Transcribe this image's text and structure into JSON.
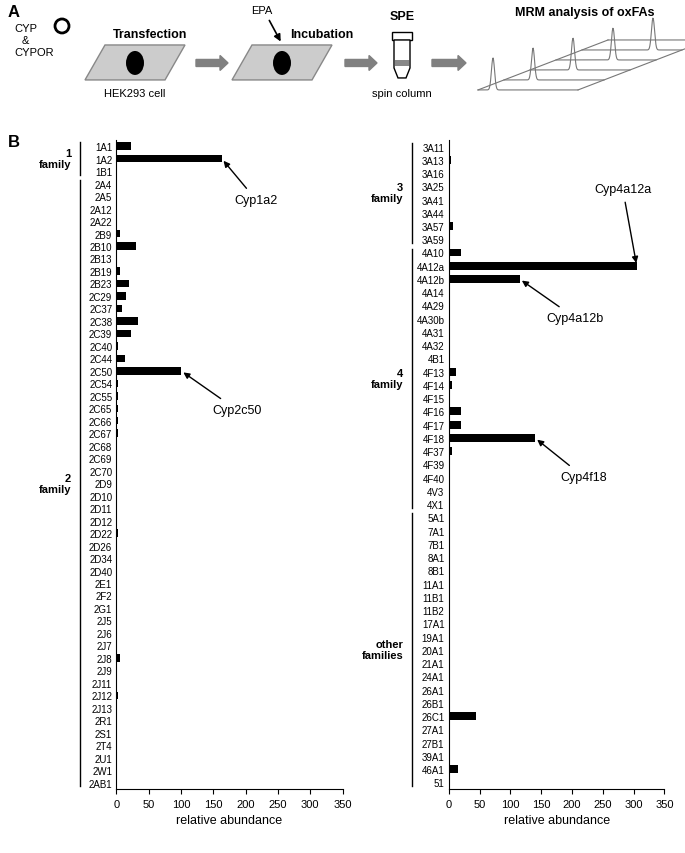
{
  "panel_a": {
    "label": "A",
    "plasmid": [
      "CYP",
      "&",
      "CYPOR"
    ],
    "steps": [
      {
        "title": "Transfection",
        "caption": "HEK293 cell"
      },
      {
        "title": "Incubation",
        "input": "EPA"
      },
      {
        "title": "SPE",
        "caption": "spin column"
      },
      {
        "title": "MRM analysis of oxFAs"
      }
    ]
  },
  "panel_b_label": "B",
  "chart_data": [
    {
      "type": "bar",
      "orientation": "horizontal",
      "color": "#000000",
      "xlabel": "relative abundance",
      "xlim": [
        0,
        350
      ],
      "xticks": [
        0,
        50,
        100,
        150,
        200,
        250,
        300,
        350
      ],
      "categories": [
        "1A1",
        "1A2",
        "1B1",
        "2A4",
        "2A5",
        "2A12",
        "2A22",
        "2B9",
        "2B10",
        "2B13",
        "2B19",
        "2B23",
        "2C29",
        "2C37",
        "2C38",
        "2C39",
        "2C40",
        "2C44",
        "2C50",
        "2C54",
        "2C55",
        "2C65",
        "2C66",
        "2C67",
        "2C68",
        "2C69",
        "2C70",
        "2D9",
        "2D10",
        "2D11",
        "2D12",
        "2D22",
        "2D26",
        "2D34",
        "2D40",
        "2E1",
        "2F2",
        "2G1",
        "2J5",
        "2J6",
        "2J7",
        "2J8",
        "2J9",
        "2J11",
        "2J12",
        "2J13",
        "2R1",
        "2S1",
        "2T4",
        "2U1",
        "2W1",
        "2AB1"
      ],
      "values": [
        22,
        163,
        0,
        0,
        0,
        0,
        0,
        5,
        30,
        0,
        6,
        20,
        15,
        8,
        33,
        22,
        2,
        13,
        100,
        2,
        2,
        2,
        2,
        2,
        0,
        0,
        0,
        0,
        0,
        0,
        0,
        2,
        0,
        0,
        0,
        0,
        0,
        0,
        0,
        0,
        0,
        5,
        0,
        0,
        2,
        0,
        0,
        0,
        0,
        1,
        0,
        0
      ],
      "groups": [
        {
          "label": "1 family",
          "from": "1A1",
          "to": "1B1"
        },
        {
          "label": "2 family",
          "from": "2A4",
          "to": "2AB1"
        }
      ],
      "annotations": [
        {
          "text": "Cyp1a2",
          "category": "1A2"
        },
        {
          "text": "Cyp2c50",
          "category": "2C50"
        }
      ]
    },
    {
      "type": "bar",
      "orientation": "horizontal",
      "color": "#000000",
      "xlabel": "relative abundance",
      "xlim": [
        0,
        350
      ],
      "xticks": [
        0,
        50,
        100,
        150,
        200,
        250,
        300,
        350
      ],
      "categories": [
        "3A11",
        "3A13",
        "3A16",
        "3A25",
        "3A41",
        "3A44",
        "3A57",
        "3A59",
        "4A10",
        "4A12a",
        "4A12b",
        "4A14",
        "4A29",
        "4A30b",
        "4A31",
        "4A32",
        "4B1",
        "4F13",
        "4F14",
        "4F15",
        "4F16",
        "4F17",
        "4F18",
        "4F37",
        "4F39",
        "4F40",
        "4V3",
        "4X1",
        "5A1",
        "7A1",
        "7B1",
        "8A1",
        "8B1",
        "11A1",
        "11B1",
        "11B2",
        "17A1",
        "19A1",
        "20A1",
        "21A1",
        "24A1",
        "26A1",
        "26B1",
        "26C1",
        "27A1",
        "27B1",
        "39A1",
        "46A1",
        "51"
      ],
      "values": [
        0,
        3,
        0,
        0,
        0,
        0,
        7,
        2,
        20,
        305,
        115,
        0,
        0,
        0,
        0,
        0,
        0,
        12,
        5,
        2,
        20,
        20,
        140,
        5,
        0,
        0,
        0,
        0,
        0,
        0,
        0,
        0,
        0,
        0,
        0,
        0,
        0,
        0,
        0,
        0,
        0,
        0,
        0,
        45,
        0,
        0,
        0,
        15,
        0
      ],
      "groups": [
        {
          "label": "3 family",
          "from": "3A11",
          "to": "3A59"
        },
        {
          "label": "4 family",
          "from": "4A10",
          "to": "4X1"
        },
        {
          "label": "other families",
          "from": "5A1",
          "to": "51"
        }
      ],
      "annotations": [
        {
          "text": "Cyp4a12a",
          "category": "4A12a"
        },
        {
          "text": "Cyp4a12b",
          "category": "4A12b"
        },
        {
          "text": "Cyp4f18",
          "category": "4F18"
        }
      ]
    }
  ]
}
